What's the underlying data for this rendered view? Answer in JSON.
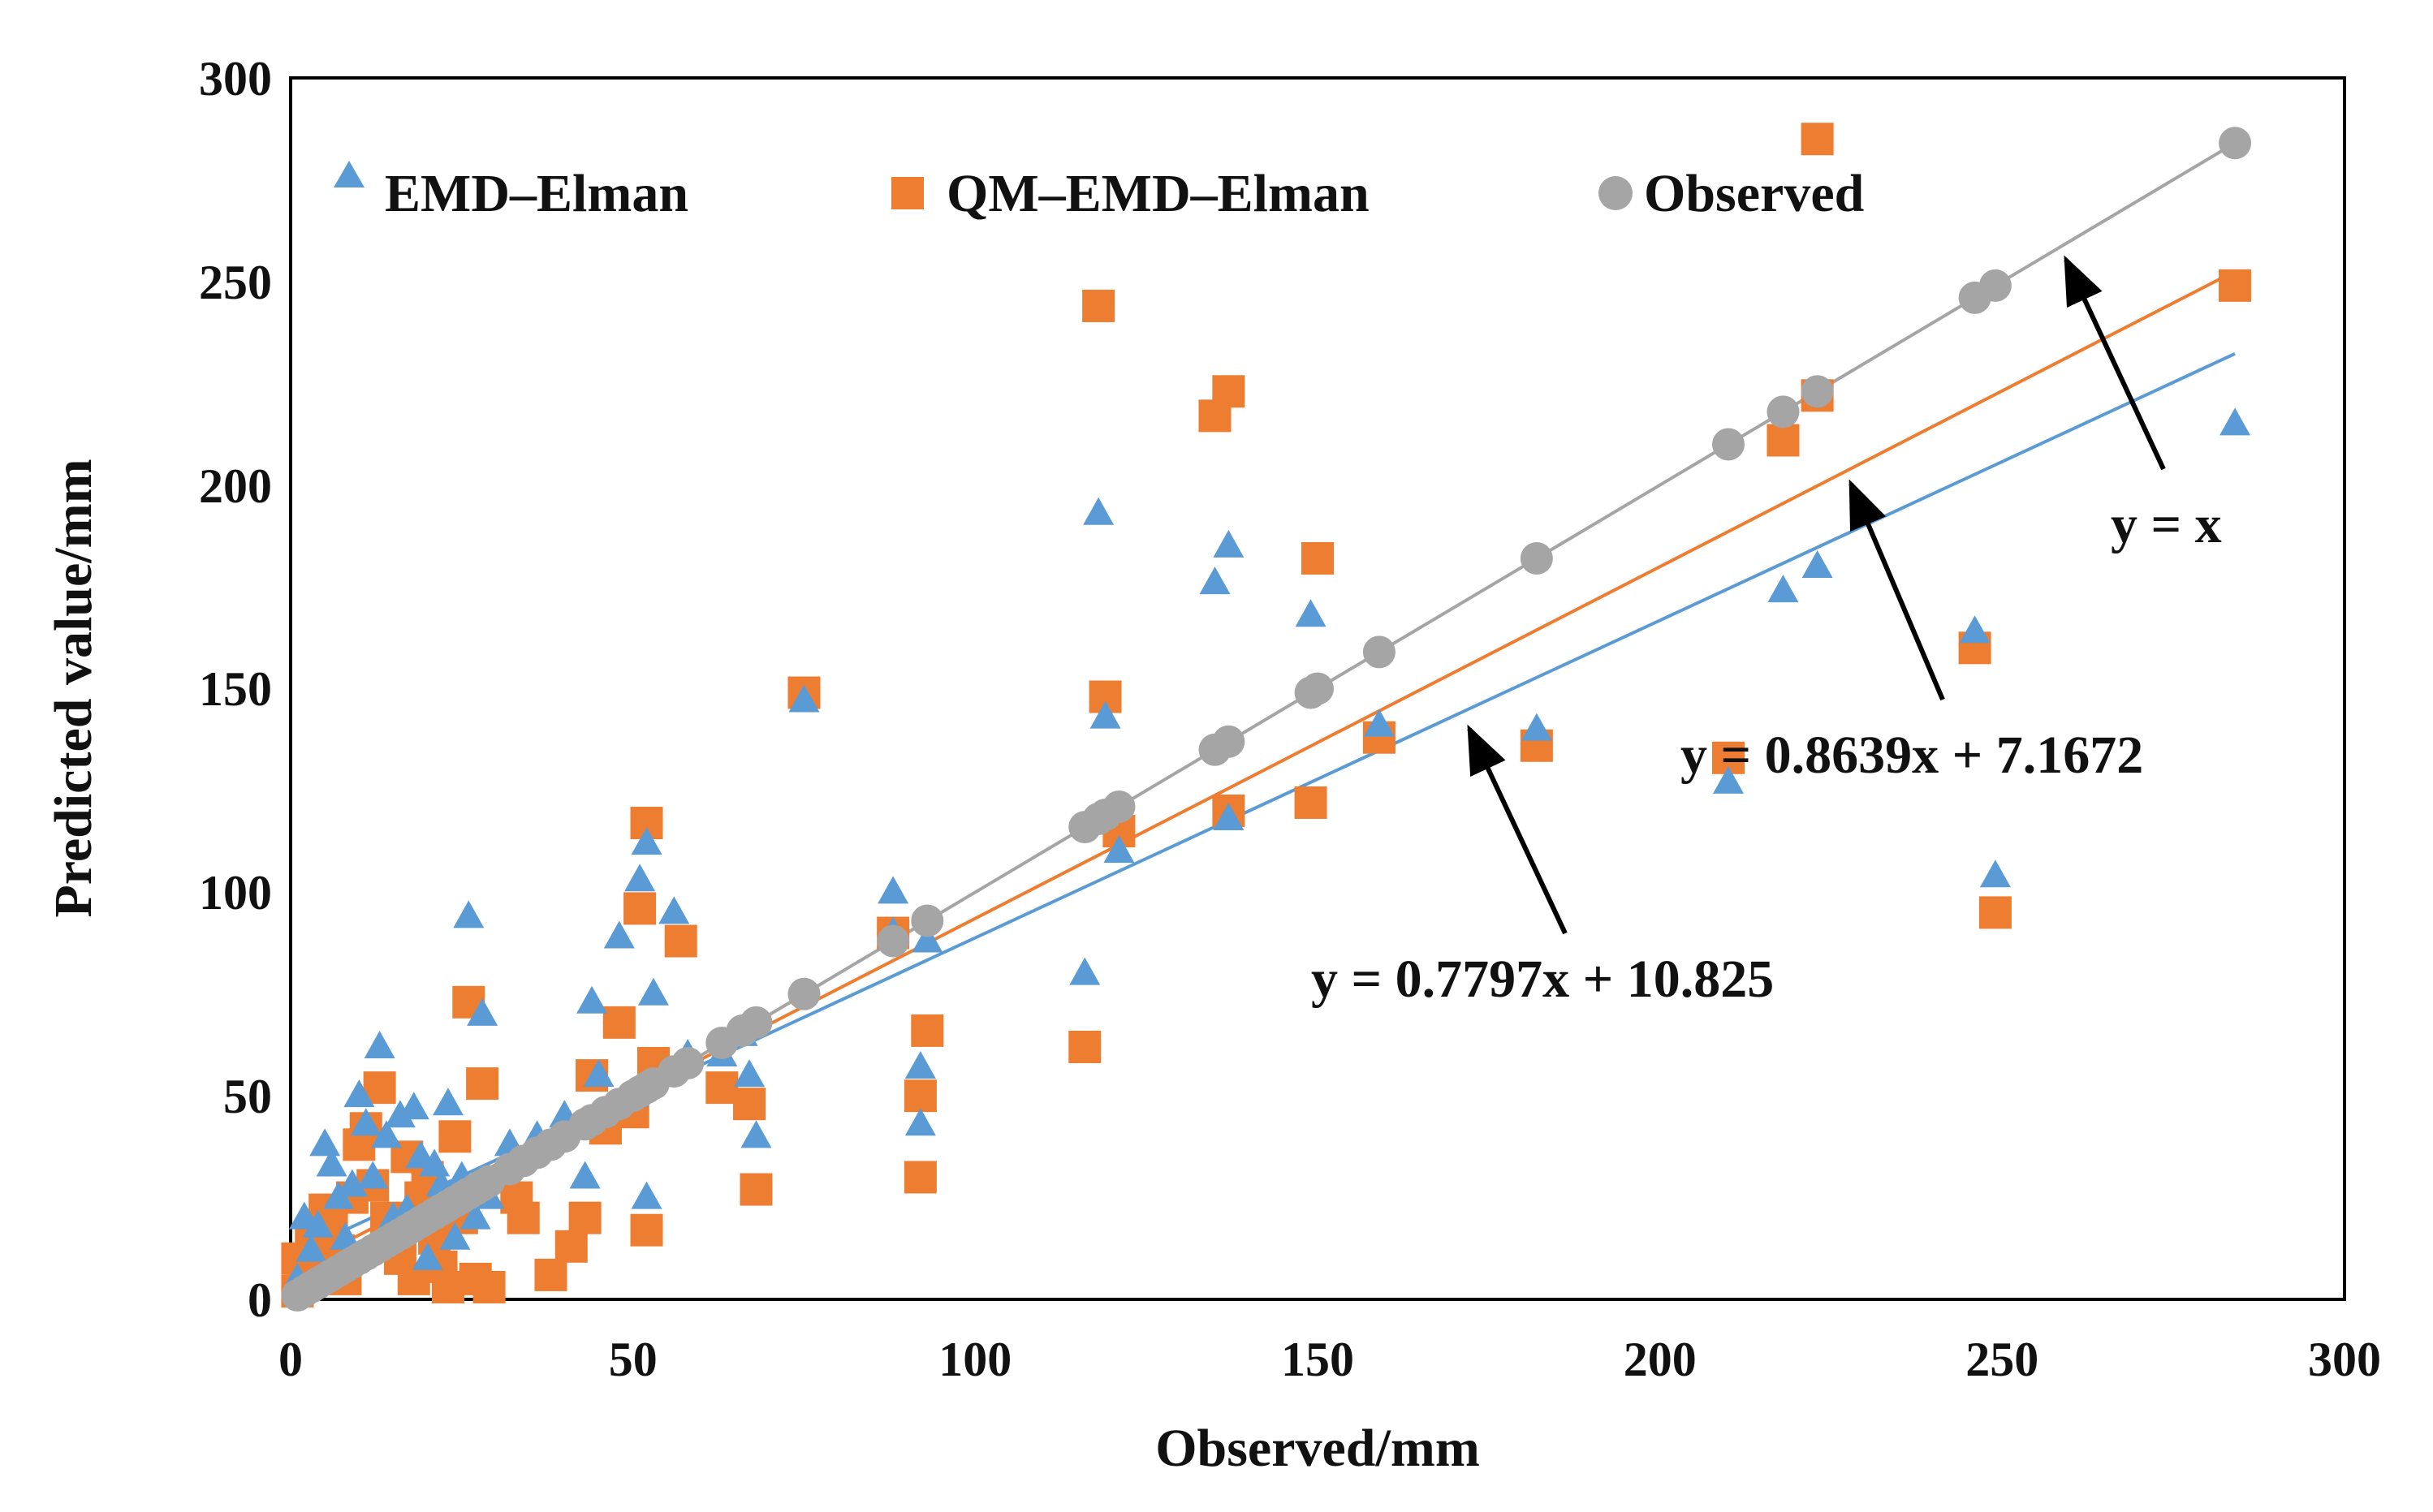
{
  "chart_data": {
    "type": "scatter",
    "title": "",
    "xlabel": "Observed/mm",
    "ylabel": "Predicted value/mm",
    "xlim": [
      0,
      300
    ],
    "ylim": [
      0,
      300
    ],
    "xticks": [
      0,
      50,
      100,
      150,
      200,
      250,
      300
    ],
    "yticks": [
      0,
      50,
      100,
      150,
      200,
      250,
      300
    ],
    "grid": false,
    "legend_position": "top",
    "series": [
      {
        "name": "EMD–Elman",
        "marker": "triangle",
        "color": "#5b9bd5",
        "points": [
          [
            1,
            5
          ],
          [
            2,
            20
          ],
          [
            3,
            12
          ],
          [
            4,
            18
          ],
          [
            5,
            38
          ],
          [
            6,
            33
          ],
          [
            7,
            25
          ],
          [
            8,
            15
          ],
          [
            9,
            28
          ],
          [
            10,
            50
          ],
          [
            11,
            43
          ],
          [
            12,
            30
          ],
          [
            13,
            62
          ],
          [
            14,
            40
          ],
          [
            15,
            20
          ],
          [
            16,
            45
          ],
          [
            17,
            22
          ],
          [
            18,
            47
          ],
          [
            19,
            35
          ],
          [
            20,
            10
          ],
          [
            21,
            33
          ],
          [
            22,
            28
          ],
          [
            23,
            48
          ],
          [
            24,
            15
          ],
          [
            25,
            30
          ],
          [
            26,
            94
          ],
          [
            27,
            20
          ],
          [
            28,
            70
          ],
          [
            29,
            25
          ],
          [
            32,
            38
          ],
          [
            36,
            40
          ],
          [
            40,
            45
          ],
          [
            43,
            30
          ],
          [
            44,
            73
          ],
          [
            45,
            55
          ],
          [
            48,
            89
          ],
          [
            50,
            50
          ],
          [
            51,
            103
          ],
          [
            52,
            112
          ],
          [
            52,
            25
          ],
          [
            53,
            75
          ],
          [
            56,
            95
          ],
          [
            58,
            60
          ],
          [
            63,
            60
          ],
          [
            66,
            65
          ],
          [
            67,
            55
          ],
          [
            68,
            40
          ],
          [
            75,
            147
          ],
          [
            88,
            100
          ],
          [
            88,
            90
          ],
          [
            92,
            57
          ],
          [
            92,
            43
          ],
          [
            93,
            88
          ],
          [
            116,
            80
          ],
          [
            118,
            193
          ],
          [
            119,
            143
          ],
          [
            121,
            110
          ],
          [
            135,
            176
          ],
          [
            137,
            118
          ],
          [
            137,
            185
          ],
          [
            149,
            168
          ],
          [
            159,
            141
          ],
          [
            182,
            140
          ],
          [
            210,
            127
          ],
          [
            218,
            174
          ],
          [
            223,
            180
          ],
          [
            246,
            164
          ],
          [
            249,
            104
          ],
          [
            284,
            215
          ]
        ],
        "trendline": {
          "label": "y = 0.7797x + 10.825",
          "slope": 0.7797,
          "intercept": 10.825
        }
      },
      {
        "name": "QM–EMD–Elman",
        "marker": "square",
        "color": "#ed7d31",
        "points": [
          [
            1,
            2
          ],
          [
            1,
            10
          ],
          [
            2,
            5
          ],
          [
            3,
            15
          ],
          [
            4,
            8
          ],
          [
            5,
            22
          ],
          [
            6,
            18
          ],
          [
            7,
            12
          ],
          [
            8,
            5
          ],
          [
            9,
            25
          ],
          [
            10,
            38
          ],
          [
            11,
            42
          ],
          [
            12,
            28
          ],
          [
            13,
            52
          ],
          [
            14,
            20
          ],
          [
            15,
            15
          ],
          [
            16,
            10
          ],
          [
            17,
            35
          ],
          [
            18,
            5
          ],
          [
            19,
            25
          ],
          [
            20,
            30
          ],
          [
            21,
            15
          ],
          [
            22,
            8
          ],
          [
            23,
            3
          ],
          [
            24,
            40
          ],
          [
            25,
            20
          ],
          [
            26,
            73
          ],
          [
            27,
            5
          ],
          [
            28,
            53
          ],
          [
            29,
            3
          ],
          [
            33,
            25
          ],
          [
            34,
            20
          ],
          [
            38,
            6
          ],
          [
            41,
            13
          ],
          [
            43,
            20
          ],
          [
            44,
            55
          ],
          [
            46,
            42
          ],
          [
            48,
            68
          ],
          [
            50,
            46
          ],
          [
            51,
            96
          ],
          [
            52,
            117
          ],
          [
            52,
            17
          ],
          [
            53,
            58
          ],
          [
            57,
            88
          ],
          [
            63,
            52
          ],
          [
            67,
            48
          ],
          [
            68,
            27
          ],
          [
            75,
            149
          ],
          [
            88,
            90
          ],
          [
            92,
            50
          ],
          [
            92,
            30
          ],
          [
            93,
            66
          ],
          [
            116,
            62
          ],
          [
            118,
            244
          ],
          [
            119,
            148
          ],
          [
            121,
            115
          ],
          [
            135,
            217
          ],
          [
            137,
            120
          ],
          [
            137,
            223
          ],
          [
            149,
            122
          ],
          [
            150,
            182
          ],
          [
            159,
            138
          ],
          [
            182,
            136
          ],
          [
            210,
            133
          ],
          [
            218,
            211
          ],
          [
            223,
            285
          ],
          [
            223,
            222
          ],
          [
            246,
            160
          ],
          [
            249,
            95
          ],
          [
            284,
            249
          ]
        ],
        "trendline": {
          "label": "y = 0.8639x + 7.1672",
          "slope": 0.8639,
          "intercept": 7.1672
        }
      },
      {
        "name": "Observed",
        "marker": "circle",
        "color": "#a5a5a5",
        "points": [
          [
            1,
            1
          ],
          [
            2,
            2
          ],
          [
            3,
            3
          ],
          [
            4,
            4
          ],
          [
            5,
            5
          ],
          [
            6,
            6
          ],
          [
            7,
            7
          ],
          [
            8,
            8
          ],
          [
            9,
            9
          ],
          [
            10,
            10
          ],
          [
            11,
            11
          ],
          [
            12,
            12
          ],
          [
            13,
            13
          ],
          [
            14,
            14
          ],
          [
            15,
            15
          ],
          [
            16,
            16
          ],
          [
            17,
            17
          ],
          [
            18,
            18
          ],
          [
            19,
            19
          ],
          [
            20,
            20
          ],
          [
            21,
            21
          ],
          [
            22,
            22
          ],
          [
            23,
            23
          ],
          [
            24,
            24
          ],
          [
            25,
            25
          ],
          [
            26,
            26
          ],
          [
            27,
            27
          ],
          [
            28,
            28
          ],
          [
            29,
            29
          ],
          [
            32,
            32
          ],
          [
            34,
            34
          ],
          [
            36,
            36
          ],
          [
            38,
            38
          ],
          [
            40,
            40
          ],
          [
            43,
            43
          ],
          [
            44,
            44
          ],
          [
            46,
            46
          ],
          [
            48,
            48
          ],
          [
            50,
            50
          ],
          [
            51,
            51
          ],
          [
            52,
            52
          ],
          [
            53,
            53
          ],
          [
            56,
            56
          ],
          [
            58,
            58
          ],
          [
            63,
            63
          ],
          [
            66,
            66
          ],
          [
            68,
            68
          ],
          [
            75,
            75
          ],
          [
            88,
            88
          ],
          [
            93,
            93
          ],
          [
            116,
            116
          ],
          [
            118,
            118
          ],
          [
            119,
            119
          ],
          [
            121,
            121
          ],
          [
            135,
            135
          ],
          [
            137,
            137
          ],
          [
            149,
            149
          ],
          [
            150,
            150
          ],
          [
            159,
            159
          ],
          [
            182,
            182
          ],
          [
            210,
            210
          ],
          [
            218,
            218
          ],
          [
            223,
            223
          ],
          [
            246,
            246
          ],
          [
            249,
            249
          ],
          [
            284,
            284
          ]
        ],
        "trendline": {
          "label": "y = x",
          "slope": 1,
          "intercept": 0
        }
      }
    ]
  }
}
